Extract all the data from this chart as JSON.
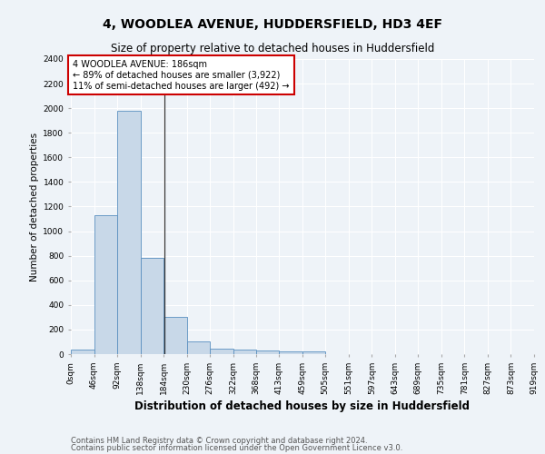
{
  "title": "4, WOODLEA AVENUE, HUDDERSFIELD, HD3 4EF",
  "subtitle": "Size of property relative to detached houses in Huddersfield",
  "xlabel": "Distribution of detached houses by size in Huddersfield",
  "ylabel": "Number of detached properties",
  "footnote1": "Contains HM Land Registry data © Crown copyright and database right 2024.",
  "footnote2": "Contains public sector information licensed under the Open Government Licence v3.0.",
  "bar_edges": [
    0,
    46,
    92,
    138,
    184,
    230,
    276,
    322,
    368,
    413,
    459,
    505,
    551,
    597,
    643,
    689,
    735,
    781,
    827,
    873,
    919
  ],
  "bar_heights": [
    35,
    1130,
    1980,
    780,
    300,
    100,
    45,
    40,
    30,
    20,
    20,
    0,
    0,
    0,
    0,
    0,
    0,
    0,
    0,
    0
  ],
  "bar_color": "#c8d8e8",
  "bar_edgecolor": "#5a8fc0",
  "tick_labels": [
    "0sqm",
    "46sqm",
    "92sqm",
    "138sqm",
    "184sqm",
    "230sqm",
    "276sqm",
    "322sqm",
    "368sqm",
    "413sqm",
    "459sqm",
    "505sqm",
    "551sqm",
    "597sqm",
    "643sqm",
    "689sqm",
    "735sqm",
    "781sqm",
    "827sqm",
    "873sqm",
    "919sqm"
  ],
  "ylim": [
    0,
    2400
  ],
  "yticks": [
    0,
    200,
    400,
    600,
    800,
    1000,
    1200,
    1400,
    1600,
    1800,
    2000,
    2200,
    2400
  ],
  "vline_x": 186,
  "annotation_line1": "4 WOODLEA AVENUE: 186sqm",
  "annotation_line2": "← 89% of detached houses are smaller (3,922)",
  "annotation_line3": "11% of semi-detached houses are larger (492) →",
  "annotation_box_color": "#ffffff",
  "annotation_box_edgecolor": "#cc0000",
  "bg_color": "#eef3f8",
  "grid_color": "#ffffff",
  "title_fontsize": 10,
  "subtitle_fontsize": 8.5,
  "xlabel_fontsize": 8.5,
  "ylabel_fontsize": 7.5,
  "tick_fontsize": 6.5,
  "annotation_fontsize": 7,
  "footnote_fontsize": 6
}
